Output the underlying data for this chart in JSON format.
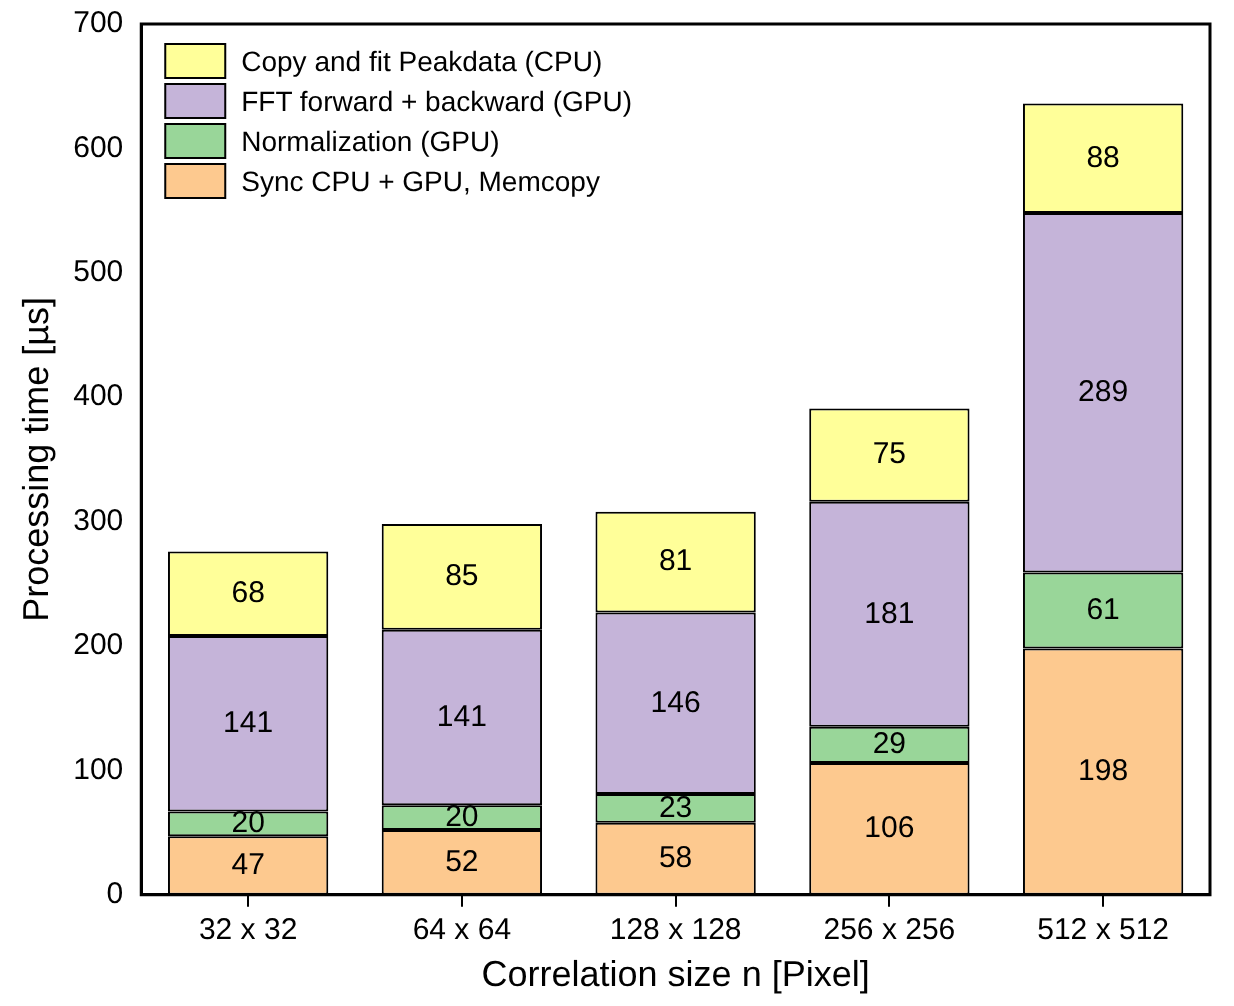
{
  "chart_data": {
    "type": "bar",
    "stacked": true,
    "xlabel": "Correlation size n [Pixel]",
    "ylabel": "Processing time [µs]",
    "categories": [
      "32 x 32",
      "64 x 64",
      "128 x 128",
      "256 x 256",
      "512 x 512"
    ],
    "series": [
      {
        "name": "Sync CPU + GPU, Memcopy",
        "color": "#fdc98f",
        "values": [
          47,
          52,
          58,
          106,
          198
        ]
      },
      {
        "name": "Normalization (GPU)",
        "color": "#99d699",
        "values": [
          20,
          20,
          23,
          29,
          61
        ]
      },
      {
        "name": "FFT forward + backward (GPU)",
        "color": "#c5b4d9",
        "values": [
          141,
          141,
          146,
          181,
          289
        ]
      },
      {
        "name": "Copy and fit Peakdata (CPU)",
        "color": "#ffff99",
        "values": [
          68,
          85,
          81,
          75,
          88
        ]
      }
    ],
    "ylim": [
      0,
      700
    ],
    "yticks": [
      0,
      100,
      200,
      300,
      400,
      500,
      600,
      700
    ],
    "grid": false,
    "legend": "top left",
    "data_labels": true
  }
}
